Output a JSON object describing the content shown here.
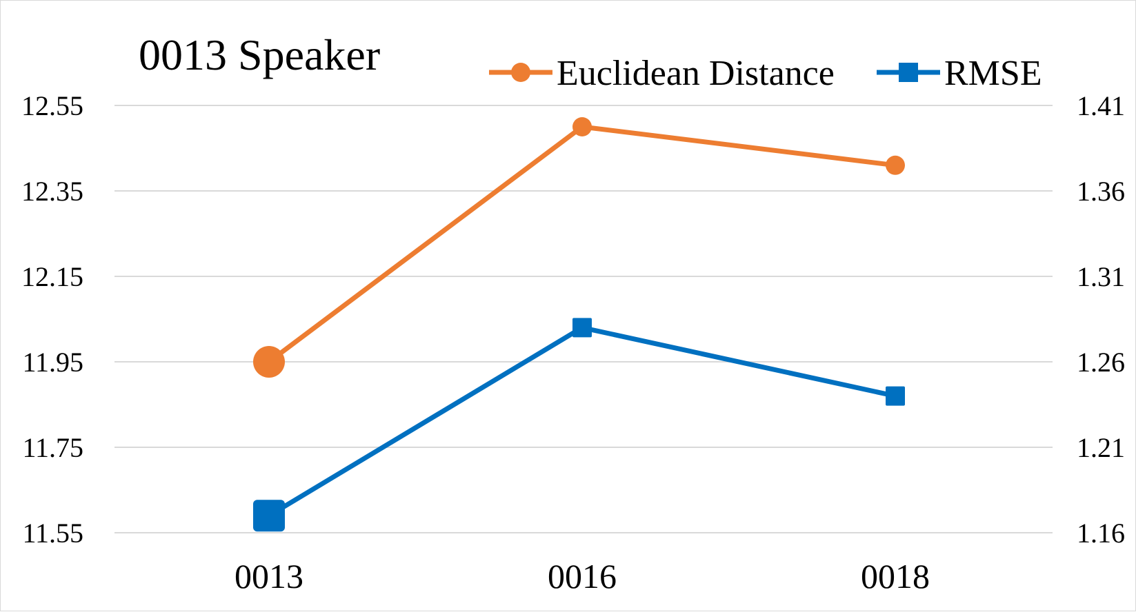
{
  "chart_data": {
    "type": "line",
    "title": "0013 Speaker",
    "categories": [
      "0013",
      "0016",
      "0018"
    ],
    "y_left": {
      "ticks": [
        "11.55",
        "11.75",
        "11.95",
        "12.15",
        "12.35",
        "12.55"
      ],
      "range": [
        11.55,
        12.55
      ]
    },
    "y_right": {
      "ticks": [
        "1.16",
        "1.21",
        "1.26",
        "1.31",
        "1.36",
        "1.41"
      ],
      "range": [
        1.16,
        1.41
      ]
    },
    "grid": true,
    "legend_position": "top-right",
    "series": [
      {
        "name": "Euclidean Distance",
        "axis": "left",
        "color": "#ED7D31",
        "marker": "circle",
        "values": [
          11.95,
          12.5,
          12.41
        ]
      },
      {
        "name": "RMSE",
        "axis": "right",
        "color": "#0070C0",
        "marker": "square",
        "values": [
          1.17,
          1.28,
          1.24
        ]
      }
    ]
  }
}
